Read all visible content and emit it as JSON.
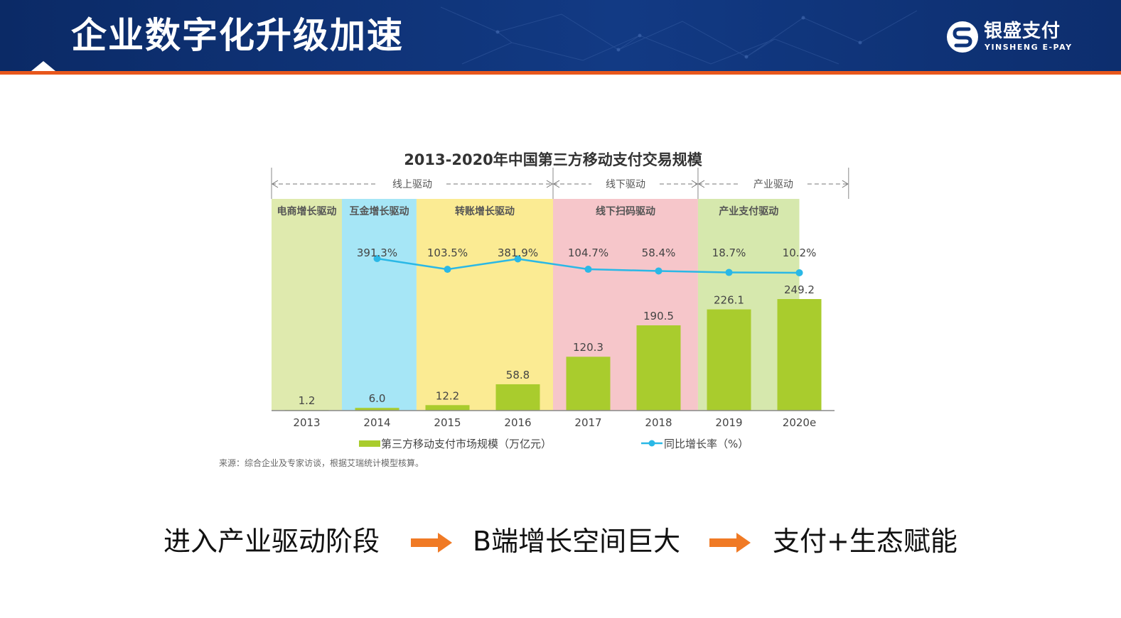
{
  "page": {
    "title": "企业数字化升级加速",
    "logo_cn": "银盛支付",
    "logo_en": "YINSHENG E-PAY",
    "source_note": "来源：综合企业及专家访谈，根据艾瑞统计模型核算。",
    "flow": [
      "进入产业驱动阶段",
      "B端增长空间巨大",
      "支付+生态赋能"
    ],
    "accent_color": "#e8571c",
    "header_color": "#0f3479"
  },
  "chart_data": {
    "type": "bar",
    "title": "2013-2020年中国第三方移动支付交易规模",
    "categories": [
      "2013",
      "2014",
      "2015",
      "2016",
      "2017",
      "2018",
      "2019",
      "2020e"
    ],
    "series": [
      {
        "name": "第三方移动支付市场规模（万亿元）",
        "type": "bar",
        "color": "#a9cc2d",
        "values": [
          1.2,
          6.0,
          12.2,
          58.8,
          120.3,
          190.5,
          226.1,
          249.2
        ],
        "labels": [
          "1.2",
          "6.0",
          "12.2",
          "58.8",
          "120.3",
          "190.5",
          "226.1",
          "249.2"
        ]
      },
      {
        "name": "同比增长率（%）",
        "type": "line",
        "color": "#2ab8e6",
        "values": [
          null,
          391.3,
          103.5,
          381.9,
          104.7,
          58.4,
          18.7,
          10.2
        ],
        "labels": [
          "",
          "391.3%",
          "103.5%",
          "381.9%",
          "104.7%",
          "58.4%",
          "18.7%",
          "10.2%"
        ]
      }
    ],
    "phases": [
      {
        "label": "电商增长驱动",
        "from": 0,
        "to": 1,
        "color": "#dfeaae"
      },
      {
        "label": "互金增长驱动",
        "from": 1,
        "to": 2.06,
        "color": "#a6e6f6"
      },
      {
        "label": "转账增长驱动",
        "from": 2.06,
        "to": 4,
        "color": "#fbeb93"
      },
      {
        "label": "线下扫码驱动",
        "from": 4,
        "to": 6.06,
        "color": "#f6c6ca"
      },
      {
        "label": "产业支付驱动",
        "from": 6.06,
        "to": 7.5,
        "color": "#d6e8ad"
      }
    ],
    "drivers": [
      {
        "label": "线上驱动",
        "from": 0,
        "to": 4
      },
      {
        "label": "线下驱动",
        "from": 4,
        "to": 6.06
      },
      {
        "label": "产业驱动",
        "from": 6.06,
        "to": 8.2
      }
    ],
    "ylim": [
      0,
      300
    ],
    "legend": "bottom",
    "grid": false
  }
}
